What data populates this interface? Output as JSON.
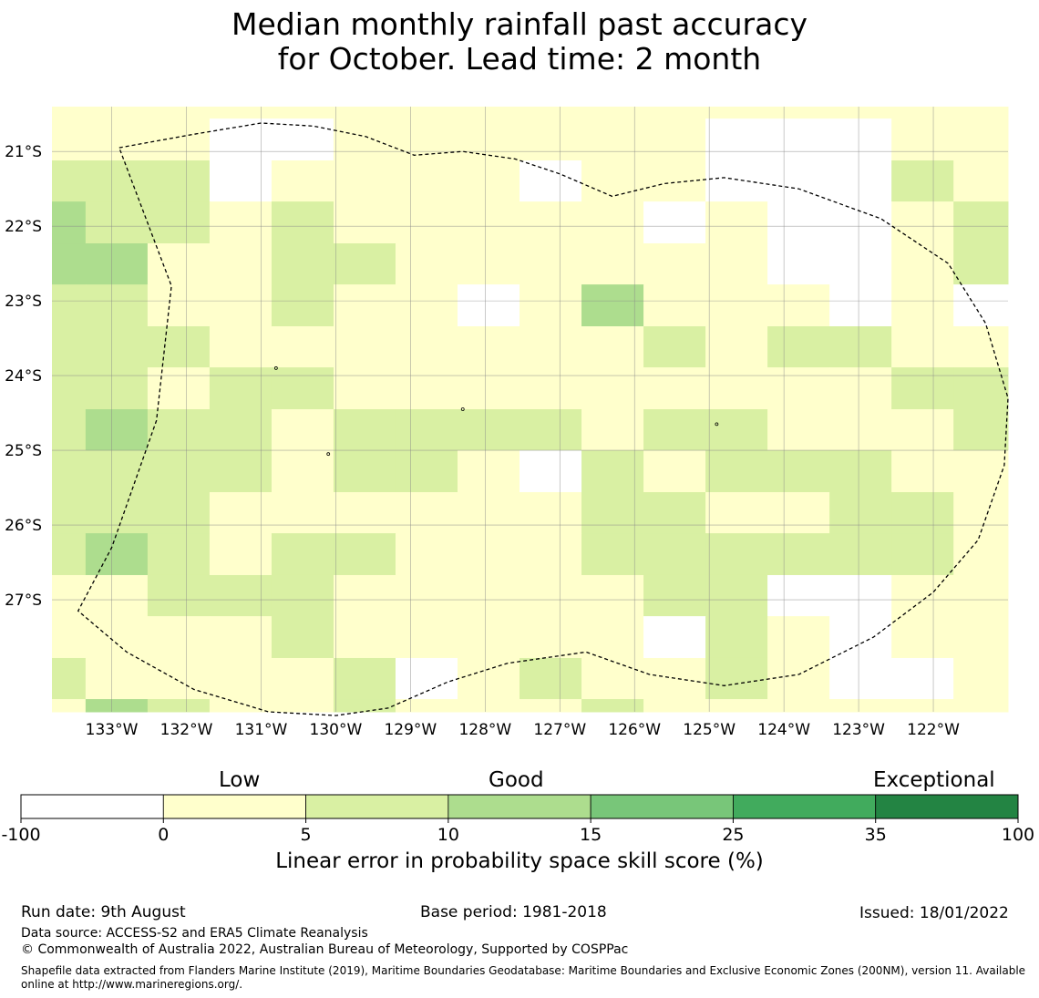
{
  "title": {
    "line1": "Median monthly rainfall past accuracy",
    "line2": "for October. Lead time: 2 month"
  },
  "map": {
    "lon_range": [
      -133.8,
      -121.0
    ],
    "lat_range": [
      -28.5,
      -20.4
    ],
    "grid_lon_ticks": [
      -133,
      -132,
      -131,
      -130,
      -129,
      -128,
      -127,
      -126,
      -125,
      -124,
      -123,
      -122
    ],
    "grid_lat_ticks": [
      -21,
      -22,
      -23,
      -24,
      -25,
      -26,
      -27
    ],
    "lon_labels": [
      "133°W",
      "132°W",
      "131°W",
      "130°W",
      "129°W",
      "128°W",
      "127°W",
      "126°W",
      "125°W",
      "124°W",
      "123°W",
      "122°W"
    ],
    "lat_labels": [
      "21°S",
      "22°S",
      "23°S",
      "24°S",
      "25°S",
      "26°S",
      "27°S"
    ],
    "cell_lon_edges": [
      -133.8,
      -133.35,
      -132.52,
      -131.69,
      -130.86,
      -130.03,
      -129.2,
      -128.37,
      -127.54,
      -126.71,
      -125.88,
      -125.05,
      -124.22,
      -123.39,
      -122.56,
      -121.73,
      -121.0
    ],
    "cell_lat_edges": [
      -20.4,
      -20.56,
      -21.12,
      -21.67,
      -22.23,
      -22.78,
      -23.34,
      -23.89,
      -24.45,
      -25.0,
      -25.56,
      -26.11,
      -26.67,
      -27.22,
      -27.78,
      -28.33,
      -28.5
    ],
    "cell_classes": [
      [
        1,
        1,
        1,
        1,
        1,
        1,
        1,
        1,
        1,
        1,
        1,
        1,
        1,
        1,
        1,
        1
      ],
      [
        1,
        1,
        1,
        0,
        0,
        1,
        1,
        1,
        1,
        1,
        1,
        0,
        0,
        0,
        1,
        1
      ],
      [
        2,
        2,
        2,
        0,
        1,
        1,
        1,
        1,
        0,
        1,
        1,
        0,
        0,
        0,
        2,
        1
      ],
      [
        3,
        2,
        2,
        1,
        2,
        1,
        1,
        1,
        1,
        1,
        0,
        1,
        0,
        0,
        1,
        2
      ],
      [
        3,
        3,
        1,
        1,
        2,
        2,
        1,
        1,
        1,
        1,
        1,
        1,
        0,
        0,
        1,
        2
      ],
      [
        2,
        2,
        1,
        1,
        2,
        1,
        1,
        0,
        1,
        3,
        1,
        1,
        1,
        0,
        1,
        0
      ],
      [
        2,
        2,
        2,
        1,
        1,
        1,
        1,
        1,
        1,
        1,
        2,
        1,
        2,
        2,
        1,
        1
      ],
      [
        2,
        2,
        1,
        2,
        2,
        1,
        1,
        1,
        1,
        1,
        1,
        1,
        1,
        1,
        2,
        2
      ],
      [
        2,
        3,
        2,
        2,
        1,
        2,
        2,
        2,
        2,
        1,
        2,
        2,
        1,
        1,
        1,
        2
      ],
      [
        2,
        2,
        2,
        2,
        1,
        2,
        2,
        1,
        0,
        2,
        1,
        2,
        2,
        2,
        1,
        1
      ],
      [
        2,
        2,
        2,
        1,
        1,
        1,
        1,
        1,
        1,
        2,
        2,
        1,
        1,
        2,
        2,
        1
      ],
      [
        2,
        3,
        2,
        1,
        2,
        2,
        1,
        1,
        1,
        2,
        2,
        2,
        2,
        2,
        2,
        1
      ],
      [
        1,
        1,
        2,
        2,
        2,
        1,
        1,
        1,
        1,
        1,
        2,
        2,
        0,
        0,
        1,
        1
      ],
      [
        1,
        1,
        1,
        1,
        2,
        1,
        1,
        1,
        1,
        1,
        0,
        2,
        1,
        0,
        1,
        1
      ],
      [
        2,
        1,
        1,
        1,
        1,
        2,
        0,
        1,
        2,
        1,
        1,
        2,
        1,
        0,
        0,
        1
      ],
      [
        1,
        3,
        2,
        1,
        1,
        2,
        1,
        1,
        1,
        2,
        1,
        1,
        1,
        1,
        1,
        1
      ]
    ],
    "zone_boundary": [
      [
        -132.9,
        -20.95
      ],
      [
        -131.9,
        -20.77
      ],
      [
        -131.0,
        -20.62
      ],
      [
        -130.3,
        -20.66
      ],
      [
        -129.6,
        -20.8
      ],
      [
        -128.95,
        -21.05
      ],
      [
        -128.3,
        -21.0
      ],
      [
        -127.6,
        -21.1
      ],
      [
        -127.0,
        -21.3
      ],
      [
        -126.3,
        -21.6
      ],
      [
        -125.6,
        -21.43
      ],
      [
        -124.8,
        -21.35
      ],
      [
        -123.8,
        -21.5
      ],
      [
        -122.7,
        -21.9
      ],
      [
        -121.8,
        -22.5
      ],
      [
        -121.3,
        -23.3
      ],
      [
        -121.0,
        -24.3
      ],
      [
        -121.05,
        -25.2
      ],
      [
        -121.4,
        -26.2
      ],
      [
        -122.0,
        -26.9
      ],
      [
        -122.8,
        -27.5
      ],
      [
        -123.8,
        -28.0
      ],
      [
        -124.8,
        -28.15
      ],
      [
        -125.8,
        -28.0
      ],
      [
        -126.65,
        -27.7
      ],
      [
        -127.7,
        -27.85
      ],
      [
        -128.5,
        -28.1
      ],
      [
        -129.3,
        -28.45
      ],
      [
        -130.0,
        -28.55
      ],
      [
        -130.9,
        -28.5
      ],
      [
        -131.9,
        -28.2
      ],
      [
        -132.8,
        -27.7
      ],
      [
        -133.45,
        -27.15
      ],
      [
        -133.0,
        -26.3
      ],
      [
        -132.4,
        -24.6
      ],
      [
        -132.2,
        -22.8
      ],
      [
        -132.9,
        -20.95
      ]
    ],
    "islands": [
      [
        -128.3,
        -24.45
      ],
      [
        -130.8,
        -23.9
      ],
      [
        -124.9,
        -24.65
      ],
      [
        -130.1,
        -25.05
      ]
    ]
  },
  "colorbar": {
    "category_labels": [
      "Low",
      "Good",
      "Exceptional"
    ],
    "ticks": [
      "-100",
      "0",
      "5",
      "10",
      "15",
      "25",
      "35",
      "100"
    ],
    "colors": [
      "#ffffff",
      "#ffffcc",
      "#d9f0a3",
      "#addd8e",
      "#78c679",
      "#41ab5d",
      "#238443"
    ],
    "label": "Linear error in probability space skill score (%)"
  },
  "footer": {
    "run_date": "Run date: 9th August",
    "base_period": "Base period: 1981-2018",
    "issued": "Issued: 18/01/2022",
    "data_source": "Data source: ACCESS-S2 and ERA5 Climate Reanalysis",
    "copyright": "© Commonwealth of Australia 2022, Australian Bureau of Meteorology, Supported by COSPPac",
    "shapefile": "Shapefile data extracted from Flanders Marine Institute (2019), Maritime Boundaries Geodatabase: Maritime Boundaries and Exclusive Economic Zones (200NM), version 11. Available online at http://www.marineregions.org/."
  }
}
